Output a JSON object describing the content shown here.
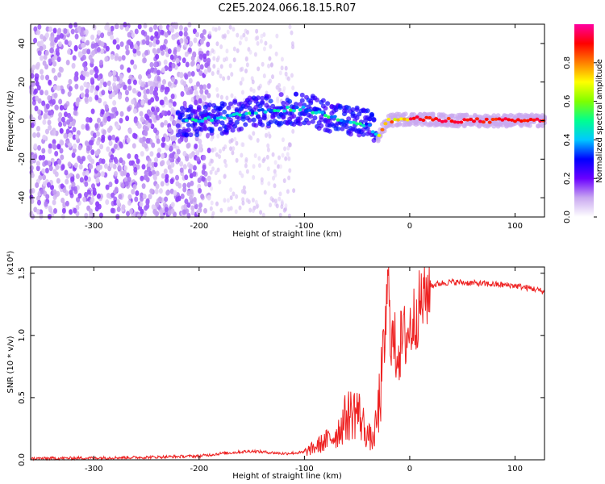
{
  "title": "C2E5.2024.066.18.15.R07",
  "chart_data": [
    {
      "type": "heatmap",
      "xlabel": "Height of straight line (km)",
      "ylabel": "Frequency (Hz)",
      "xlim": [
        -360,
        128
      ],
      "ylim": [
        -50,
        50
      ],
      "x_ticks": [
        -300,
        -200,
        -100,
        0,
        100
      ],
      "y_ticks": [
        -40,
        -20,
        0,
        20,
        40
      ],
      "colorbar": {
        "label": "Normalized spectral amplitude",
        "range": [
          0,
          1
        ],
        "ticks": [
          "0.0",
          "0.2",
          "0.4",
          "0.6",
          "0.8"
        ],
        "colors": [
          "#ffffff",
          "#c9a8f0",
          "#6a00ff",
          "#0000ff",
          "#00c8ff",
          "#00ff90",
          "#7fff00",
          "#ffff00",
          "#ff8000",
          "#ff0000",
          "#ff00a0"
        ]
      },
      "features": {
        "noise_region_x": [
          -360,
          -190
        ],
        "sparse_noise_x": [
          -190,
          -110
        ],
        "signal_trace": [
          {
            "x": -220,
            "freq": 0
          },
          {
            "x": -180,
            "freq": 1
          },
          {
            "x": -150,
            "freq": 4
          },
          {
            "x": -120,
            "freq": 6
          },
          {
            "x": -100,
            "freq": 6
          },
          {
            "x": -80,
            "freq": 3
          },
          {
            "x": -60,
            "freq": 0
          },
          {
            "x": -40,
            "freq": -2
          },
          {
            "x": -30,
            "freq": -8
          },
          {
            "x": -20,
            "freq": 0
          },
          {
            "x": 0,
            "freq": 1
          },
          {
            "x": 50,
            "freq": 0
          },
          {
            "x": 128,
            "freq": 0
          }
        ]
      }
    },
    {
      "type": "line",
      "xlabel": "Height of straight line (km)",
      "ylabel": "SNR (10 * v/v)",
      "y_multiplier": "(x10⁴)",
      "xlim": [
        -360,
        128
      ],
      "ylim": [
        0,
        1.55
      ],
      "x_ticks": [
        -300,
        -200,
        -100,
        0,
        100
      ],
      "y_ticks": [
        "0.0",
        "0.5",
        "1.0",
        "1.5"
      ],
      "series": [
        {
          "color": "#ee2222",
          "x": [
            -360,
            -300,
            -250,
            -200,
            -180,
            -150,
            -120,
            -100,
            -90,
            -80,
            -70,
            -60,
            -50,
            -45,
            -40,
            -35,
            -30,
            -25,
            -22,
            -20,
            -18,
            -15,
            -10,
            0,
            10,
            20,
            30,
            40,
            60,
            80,
            100,
            120,
            128
          ],
          "y": [
            0.01,
            0.015,
            0.02,
            0.03,
            0.05,
            0.07,
            0.05,
            0.06,
            0.1,
            0.15,
            0.2,
            0.35,
            0.4,
            0.3,
            0.2,
            0.15,
            0.35,
            0.8,
            1.2,
            1.5,
            1.0,
            0.9,
            0.9,
            1.05,
            1.25,
            1.4,
            1.42,
            1.43,
            1.42,
            1.41,
            1.4,
            1.37,
            1.35
          ]
        }
      ]
    }
  ]
}
